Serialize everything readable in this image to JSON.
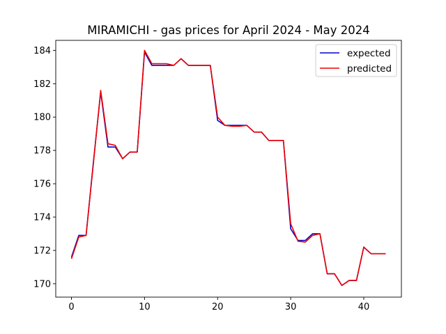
{
  "chart_data": {
    "type": "line",
    "title": "MIRAMICHI - gas prices for April 2024 - May 2024",
    "xlabel": "",
    "ylabel": "",
    "xlim": [
      -2.15,
      45.15
    ],
    "ylim": [
      169.2,
      184.6
    ],
    "xticks": [
      0,
      10,
      20,
      30,
      40
    ],
    "yticks": [
      170,
      172,
      174,
      176,
      178,
      180,
      182,
      184
    ],
    "grid": false,
    "legend_position": "top-right",
    "x": [
      0,
      1,
      2,
      3,
      4,
      5,
      6,
      7,
      8,
      9,
      10,
      11,
      12,
      13,
      14,
      15,
      16,
      17,
      18,
      19,
      20,
      21,
      22,
      23,
      24,
      25,
      26,
      27,
      28,
      29,
      30,
      31,
      32,
      33,
      34,
      35,
      36,
      37,
      38,
      39,
      40,
      41,
      42,
      43
    ],
    "series": [
      {
        "name": "expected",
        "color": "#0000cc",
        "values": [
          171.6,
          172.9,
          172.9,
          177.3,
          181.5,
          178.2,
          178.2,
          177.5,
          177.9,
          177.9,
          183.9,
          183.1,
          183.1,
          183.1,
          183.1,
          183.5,
          183.1,
          183.1,
          183.1,
          183.1,
          179.8,
          179.5,
          179.5,
          179.5,
          179.5,
          179.1,
          179.1,
          178.6,
          178.6,
          178.6,
          173.3,
          172.6,
          172.6,
          173.0,
          173.0,
          170.6,
          170.6,
          169.9,
          170.2,
          170.2,
          172.2,
          171.8,
          171.8,
          171.8
        ]
      },
      {
        "name": "predicted",
        "color": "#ee0000",
        "values": [
          171.5,
          172.8,
          172.9,
          177.2,
          181.6,
          178.4,
          178.3,
          177.5,
          177.9,
          177.9,
          184.0,
          183.2,
          183.2,
          183.2,
          183.1,
          183.5,
          183.1,
          183.1,
          183.1,
          183.1,
          180.0,
          179.5,
          179.45,
          179.45,
          179.5,
          179.1,
          179.1,
          178.6,
          178.6,
          178.6,
          173.6,
          172.55,
          172.5,
          172.9,
          173.0,
          170.6,
          170.6,
          169.9,
          170.2,
          170.2,
          172.2,
          171.8,
          171.8,
          171.8
        ]
      }
    ]
  }
}
